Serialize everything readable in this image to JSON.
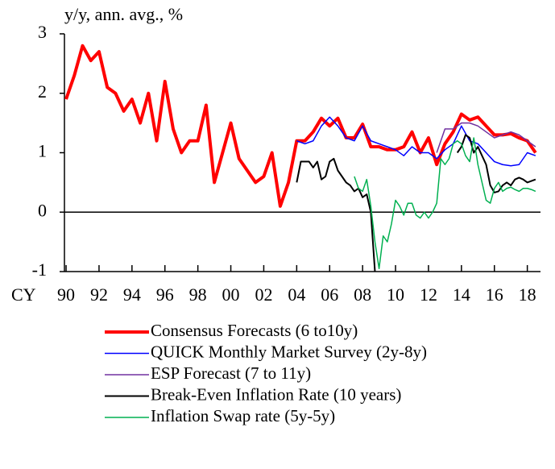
{
  "chart_data": {
    "type": "line",
    "y_label": "y/y, ann. avg., %",
    "x_label": "CY",
    "xlim": [
      1989.9,
      2018.8
    ],
    "ylim": [
      -1,
      3
    ],
    "yticks": [
      -1,
      0,
      1,
      2,
      3
    ],
    "xticks": [
      {
        "value": 1990,
        "label": "90"
      },
      {
        "value": 1992,
        "label": "92"
      },
      {
        "value": 1994,
        "label": "94"
      },
      {
        "value": 1996,
        "label": "96"
      },
      {
        "value": 1998,
        "label": "98"
      },
      {
        "value": 2000,
        "label": "00"
      },
      {
        "value": 2002,
        "label": "02"
      },
      {
        "value": 2004,
        "label": "04"
      },
      {
        "value": 2006,
        "label": "06"
      },
      {
        "value": 2008,
        "label": "08"
      },
      {
        "value": 2010,
        "label": "10"
      },
      {
        "value": 2012,
        "label": "12"
      },
      {
        "value": 2014,
        "label": "14"
      },
      {
        "value": 2016,
        "label": "16"
      },
      {
        "value": 2018,
        "label": "18"
      }
    ],
    "series": [
      {
        "name": "Consensus Forecasts (6 to10y)",
        "color": "#ff0000",
        "width": 4,
        "x": [
          1990,
          1990.5,
          1991,
          1991.5,
          1992,
          1992.5,
          1993,
          1993.5,
          1994,
          1994.5,
          1995,
          1995.5,
          1996,
          1996.5,
          1997,
          1997.5,
          1998,
          1998.5,
          1999,
          1999.5,
          2000,
          2000.5,
          2001,
          2001.5,
          2002,
          2002.5,
          2003,
          2003.5,
          2004,
          2004.5,
          2005,
          2005.5,
          2006,
          2006.5,
          2007,
          2007.5,
          2008,
          2008.5,
          2009,
          2009.5,
          2010,
          2010.5,
          2011,
          2011.5,
          2012,
          2012.5,
          2013,
          2013.5,
          2014,
          2014.5,
          2015,
          2015.5,
          2016,
          2016.5,
          2017,
          2017.5,
          2018,
          2018.5
        ],
        "values": [
          1.9,
          2.3,
          2.8,
          2.55,
          2.7,
          2.1,
          2.0,
          1.7,
          1.9,
          1.5,
          2.0,
          1.2,
          2.2,
          1.4,
          1.0,
          1.2,
          1.2,
          1.8,
          0.5,
          1.0,
          1.5,
          0.9,
          0.7,
          0.5,
          0.6,
          1.0,
          0.1,
          0.5,
          1.2,
          1.2,
          1.35,
          1.58,
          1.45,
          1.58,
          1.25,
          1.25,
          1.48,
          1.1,
          1.1,
          1.05,
          1.05,
          1.1,
          1.35,
          1.0,
          1.25,
          0.8,
          1.15,
          1.35,
          1.65,
          1.55,
          1.6,
          1.45,
          1.3,
          1.3,
          1.32,
          1.25,
          1.2,
          1.0
        ]
      },
      {
        "name": "QUICK Monthly Market Survey (2y-8y)",
        "color": "#0000ff",
        "width": 1.5,
        "x": [
          2004,
          2004.5,
          2005,
          2005.5,
          2006,
          2006.5,
          2007,
          2007.5,
          2008,
          2008.5,
          2009,
          2009.5,
          2010,
          2010.5,
          2011,
          2011.5,
          2012,
          2012.5,
          2013,
          2013.5,
          2014,
          2014.5,
          2015,
          2015.5,
          2016,
          2016.5,
          2017,
          2017.5,
          2018,
          2018.5
        ],
        "values": [
          1.2,
          1.15,
          1.2,
          1.45,
          1.6,
          1.45,
          1.25,
          1.2,
          1.45,
          1.2,
          1.15,
          1.1,
          1.05,
          0.95,
          1.1,
          1.0,
          1.0,
          0.9,
          1.05,
          1.15,
          1.45,
          1.2,
          1.15,
          1.0,
          0.85,
          0.8,
          0.78,
          0.8,
          1.0,
          0.95
        ]
      },
      {
        "name": "ESP Forecast (7 to 11y)",
        "color": "#7030a0",
        "width": 1.5,
        "x": [
          2012.5,
          2013,
          2013.5,
          2014,
          2014.5,
          2015,
          2015.5,
          2016,
          2016.5,
          2017,
          2017.5,
          2018,
          2018.5
        ],
        "values": [
          1.0,
          1.4,
          1.4,
          1.5,
          1.5,
          1.45,
          1.35,
          1.25,
          1.3,
          1.35,
          1.3,
          1.2,
          1.1
        ]
      },
      {
        "name": "Break-Even Inflation Rate (10 years)",
        "color": "#000000",
        "width": 2,
        "x": [
          2004,
          2004.25,
          2004.75,
          2005,
          2005.25,
          2005.5,
          2005.75,
          2006,
          2006.25,
          2006.5,
          2006.75,
          2007,
          2007.25,
          2007.5,
          2007.75,
          2008,
          2008.25,
          2008.5,
          2008.75,
          2011,
          2013.75,
          2014,
          2014.25,
          2014.5,
          2014.75,
          2015,
          2015.25,
          2015.5,
          2015.75,
          2016,
          2016.25,
          2016.5,
          2016.75,
          2017,
          2017.25,
          2017.5,
          2017.75,
          2018,
          2018.5
        ],
        "values": [
          0.5,
          0.85,
          0.85,
          0.75,
          0.85,
          0.55,
          0.6,
          0.85,
          0.9,
          0.7,
          0.6,
          0.5,
          0.45,
          0.35,
          0.4,
          0.25,
          0.3,
          0.0,
          -1.0,
          null,
          1.0,
          1.1,
          1.3,
          1.25,
          1.0,
          1.1,
          0.95,
          0.8,
          0.45,
          0.33,
          0.35,
          0.45,
          0.5,
          0.45,
          0.55,
          0.58,
          0.55,
          0.5,
          0.55
        ]
      },
      {
        "name": "Inflation Swap rate (5y-5y)",
        "color": "#00b050",
        "width": 1.5,
        "x": [
          2007.5,
          2007.75,
          2008,
          2008.25,
          2008.5,
          2008.75,
          2009,
          2009.25,
          2009.5,
          2009.75,
          2010,
          2010.25,
          2010.5,
          2010.75,
          2011,
          2011.25,
          2011.5,
          2011.75,
          2012,
          2012.25,
          2012.5,
          2012.75,
          2013,
          2013.25,
          2013.5,
          2013.75,
          2014,
          2014.25,
          2014.5,
          2014.75,
          2015,
          2015.25,
          2015.5,
          2015.75,
          2016,
          2016.25,
          2016.5,
          2016.75,
          2017,
          2017.25,
          2017.5,
          2017.75,
          2018,
          2018.25,
          2018.5
        ],
        "values": [
          0.6,
          0.4,
          0.35,
          0.55,
          0.1,
          -0.5,
          -0.95,
          -0.4,
          -0.5,
          -0.2,
          0.2,
          0.1,
          -0.05,
          0.15,
          0.15,
          -0.05,
          -0.1,
          0.0,
          -0.1,
          0.0,
          0.15,
          0.9,
          0.8,
          0.9,
          1.15,
          1.2,
          1.15,
          0.95,
          0.85,
          1.25,
          0.8,
          0.5,
          0.2,
          0.15,
          0.4,
          0.5,
          0.35,
          0.4,
          0.42,
          0.38,
          0.35,
          0.4,
          0.4,
          0.38,
          0.35
        ]
      }
    ]
  }
}
